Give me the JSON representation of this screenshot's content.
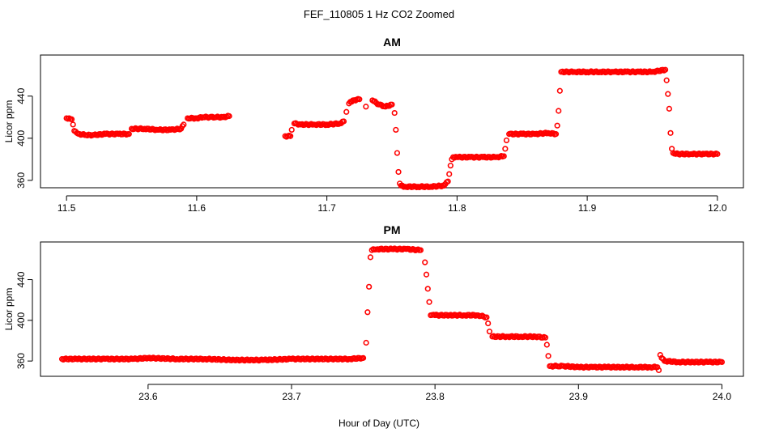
{
  "figure": {
    "title": "FEF_110805  1 Hz CO2 Zoomed",
    "xlabel": "Hour of Day (UTC)",
    "marker_color": "#ff0000"
  },
  "chart_data": [
    {
      "type": "scatter",
      "title": "AM",
      "xlabel": "",
      "ylabel": "Licor ppm",
      "xlim": [
        11.48,
        12.02
      ],
      "ylim": [
        353,
        479
      ],
      "xticks": [
        11.5,
        11.6,
        11.7,
        11.8,
        11.9,
        12.0
      ],
      "xtick_labels": [
        "11.5",
        "11.6",
        "11.7",
        "11.8",
        "11.9",
        "12.0"
      ],
      "yticks": [
        360,
        400,
        440
      ],
      "ytick_labels": [
        "360",
        "400",
        "440"
      ],
      "grid": false,
      "legend": "none",
      "series": [
        {
          "x": [
            11.5,
            11.502,
            11.504,
            11.505,
            11.506,
            11.508,
            11.51,
            11.515,
            11.52,
            11.53,
            11.54,
            11.548,
            11.55,
            11.56,
            11.57,
            11.58,
            11.588,
            11.59,
            11.593,
            11.6,
            11.605,
            11.61,
            11.615,
            11.62,
            11.625,
            11.668,
            11.672,
            11.673,
            11.675,
            11.68,
            11.69,
            11.7,
            11.71,
            11.713,
            11.715,
            11.717,
            11.72,
            11.725,
            11.73,
            11.735,
            11.74,
            11.745,
            11.75,
            11.752,
            11.753,
            11.754,
            11.755,
            11.756,
            11.757,
            11.76,
            11.77,
            11.78,
            11.79,
            11.793,
            11.794,
            11.795,
            11.796,
            11.797,
            11.8,
            11.81,
            11.82,
            11.83,
            11.836,
            11.837,
            11.838,
            11.84,
            11.85,
            11.86,
            11.87,
            11.876,
            11.877,
            11.878,
            11.879,
            11.88,
            11.89,
            11.9,
            11.91,
            11.92,
            11.93,
            11.94,
            11.95,
            11.96,
            11.961,
            11.962,
            11.963,
            11.964,
            11.965,
            11.966,
            11.97,
            11.98,
            11.99,
            12.0
          ],
          "y": [
            419,
            419,
            418,
            413,
            407,
            405,
            404,
            403,
            403,
            404,
            404,
            404,
            409,
            409,
            408,
            408,
            409,
            413,
            419,
            419,
            420,
            420,
            420,
            420,
            421,
            402,
            402,
            408,
            414,
            413,
            413,
            413,
            414,
            416,
            425,
            433,
            436,
            437,
            430,
            436,
            432,
            430,
            432,
            424,
            408,
            386,
            368,
            357,
            355,
            354,
            354,
            354,
            355,
            359,
            366,
            374,
            380,
            382,
            382,
            382,
            382,
            382,
            383,
            390,
            398,
            404,
            404,
            404,
            405,
            404,
            412,
            426,
            445,
            463,
            463,
            463,
            463,
            463,
            463,
            463,
            463,
            465,
            455,
            442,
            428,
            405,
            390,
            386,
            385,
            385,
            385,
            385
          ]
        }
      ]
    },
    {
      "type": "scatter",
      "title": "PM",
      "xlabel": "",
      "ylabel": "Licor ppm",
      "xlim": [
        23.525,
        24.015
      ],
      "ylim": [
        345,
        477
      ],
      "xticks": [
        23.6,
        23.7,
        23.8,
        23.9,
        24.0
      ],
      "xtick_labels": [
        "23.6",
        "23.7",
        "23.8",
        "23.9",
        "24.0"
      ],
      "yticks": [
        360,
        400,
        440
      ],
      "ytick_labels": [
        "360",
        "400",
        "440"
      ],
      "grid": false,
      "legend": "none",
      "series": [
        {
          "x": [
            23.54,
            23.55,
            23.57,
            23.59,
            23.6,
            23.62,
            23.64,
            23.66,
            23.68,
            23.7,
            23.72,
            23.74,
            23.75,
            23.752,
            23.753,
            23.754,
            23.755,
            23.756,
            23.757,
            23.76,
            23.77,
            23.78,
            23.79,
            23.793,
            23.794,
            23.795,
            23.796,
            23.797,
            23.8,
            23.81,
            23.82,
            23.83,
            23.836,
            23.837,
            23.838,
            23.84,
            23.85,
            23.86,
            23.87,
            23.877,
            23.878,
            23.879,
            23.88,
            23.885,
            23.89,
            23.9,
            23.91,
            23.92,
            23.93,
            23.94,
            23.95,
            23.955,
            23.956,
            23.957,
            23.958,
            23.96,
            23.97,
            23.98,
            23.99,
            24.0
          ],
          "y": [
            362,
            362,
            362,
            362,
            363,
            362,
            362,
            361,
            361,
            362,
            362,
            362,
            363,
            378,
            408,
            433,
            462,
            469,
            470,
            470,
            470,
            470,
            469,
            457,
            445,
            431,
            418,
            405,
            405,
            405,
            405,
            405,
            403,
            397,
            389,
            384,
            384,
            384,
            384,
            383,
            376,
            365,
            355,
            355,
            355,
            354,
            354,
            354,
            354,
            354,
            354,
            354,
            351,
            366,
            363,
            360,
            359,
            359,
            359,
            359
          ]
        }
      ]
    }
  ]
}
